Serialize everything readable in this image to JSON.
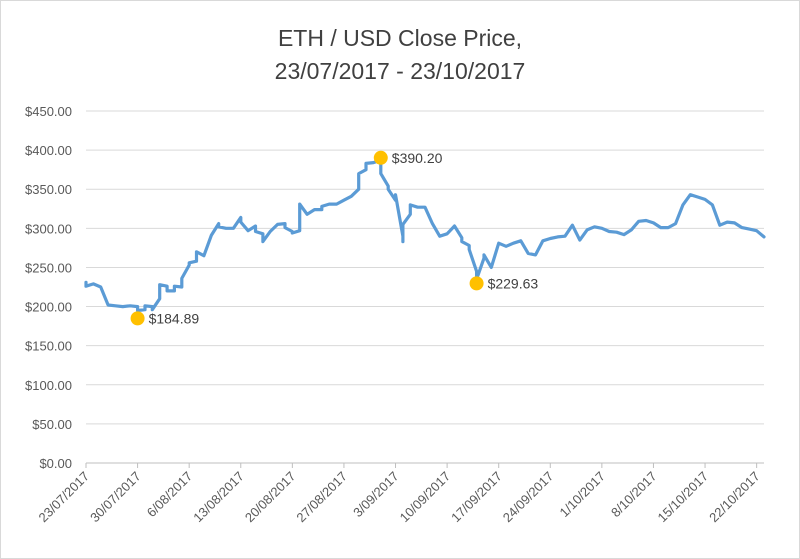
{
  "chart_data": {
    "type": "line",
    "title_lines": [
      "ETH / USD Close Price,",
      "23/07/2017 - 23/10/2017"
    ],
    "xlabel": "",
    "ylabel": "",
    "ylim": [
      0,
      450
    ],
    "y_ticks": [
      0,
      50,
      100,
      150,
      200,
      250,
      300,
      350,
      400,
      450
    ],
    "y_tick_labels": [
      "$0.00",
      "$50.00",
      "$100.00",
      "$150.00",
      "$200.00",
      "$250.00",
      "$300.00",
      "$350.00",
      "$400.00",
      "$450.00"
    ],
    "x_tick_labels": [
      "23/07/2017",
      "30/07/2017",
      "6/08/2017",
      "13/08/2017",
      "20/08/2017",
      "27/08/2017",
      "3/09/2017",
      "10/09/2017",
      "17/09/2017",
      "24/09/2017",
      "1/10/2017",
      "8/10/2017",
      "15/10/2017",
      "22/10/2017"
    ],
    "grid": "horizontal",
    "legend": "none",
    "series": [
      {
        "color": "#5b9bd5",
        "points": [
          [
            "23/07/2017",
            231
          ],
          [
            "23/07/2017",
            226
          ],
          [
            "24/07/2017",
            229
          ],
          [
            "25/07/2017",
            225
          ],
          [
            "26/07/2017",
            202
          ],
          [
            "27/07/2017",
            201
          ],
          [
            "28/07/2017",
            200
          ],
          [
            "29/07/2017",
            201
          ],
          [
            "30/07/2017",
            200
          ],
          [
            "30/07/2017",
            195
          ],
          [
            "31/07/2017",
            196
          ],
          [
            "31/07/2017",
            201
          ],
          [
            "1/08/2017",
            200
          ],
          [
            "1/08/2017",
            196
          ],
          [
            "2/08/2017",
            210
          ],
          [
            "2/08/2017",
            228
          ],
          [
            "3/08/2017",
            226
          ],
          [
            "3/08/2017",
            220
          ],
          [
            "4/08/2017",
            220
          ],
          [
            "4/08/2017",
            226
          ],
          [
            "5/08/2017",
            225
          ],
          [
            "5/08/2017",
            236
          ],
          [
            "6/08/2017",
            253
          ],
          [
            "6/08/2017",
            256
          ],
          [
            "7/08/2017",
            258
          ],
          [
            "7/08/2017",
            270
          ],
          [
            "8/08/2017",
            265
          ],
          [
            "9/08/2017",
            291
          ],
          [
            "10/08/2017",
            306
          ],
          [
            "10/08/2017",
            302
          ],
          [
            "11/08/2017",
            300
          ],
          [
            "12/08/2017",
            300
          ],
          [
            "13/08/2017",
            314
          ],
          [
            "13/08/2017",
            308
          ],
          [
            "14/08/2017",
            297
          ],
          [
            "15/08/2017",
            303
          ],
          [
            "15/08/2017",
            296
          ],
          [
            "16/08/2017",
            293
          ],
          [
            "16/08/2017",
            283
          ],
          [
            "17/08/2017",
            296
          ],
          [
            "18/08/2017",
            305
          ],
          [
            "19/08/2017",
            306
          ],
          [
            "19/08/2017",
            301
          ],
          [
            "20/08/2017",
            296
          ],
          [
            "20/08/2017",
            294
          ],
          [
            "21/08/2017",
            297
          ],
          [
            "21/08/2017",
            317
          ],
          [
            "21/08/2017",
            331
          ],
          [
            "22/08/2017",
            318
          ],
          [
            "23/08/2017",
            324
          ],
          [
            "24/08/2017",
            324
          ],
          [
            "24/08/2017",
            328
          ],
          [
            "25/08/2017",
            331
          ],
          [
            "26/08/2017",
            331
          ],
          [
            "27/08/2017",
            336
          ],
          [
            "28/08/2017",
            341
          ],
          [
            "29/08/2017",
            350
          ],
          [
            "29/08/2017",
            370
          ],
          [
            "30/08/2017",
            375
          ],
          [
            "30/08/2017",
            383
          ],
          [
            "31/08/2017",
            384
          ],
          [
            "1/09/2017",
            387
          ],
          [
            "1/09/2017",
            391
          ],
          [
            "1/09/2017",
            383
          ],
          [
            "1/09/2017",
            370
          ],
          [
            "2/09/2017",
            354
          ],
          [
            "2/09/2017",
            350
          ],
          [
            "3/09/2017",
            336
          ],
          [
            "3/09/2017",
            343
          ],
          [
            "4/09/2017",
            290
          ],
          [
            "4/09/2017",
            283
          ],
          [
            "4/09/2017",
            305
          ],
          [
            "5/09/2017",
            318
          ],
          [
            "5/09/2017",
            330
          ],
          [
            "6/09/2017",
            327
          ],
          [
            "7/09/2017",
            327
          ],
          [
            "8/09/2017",
            306
          ],
          [
            "9/09/2017",
            290
          ],
          [
            "10/09/2017",
            293
          ],
          [
            "11/09/2017",
            303
          ],
          [
            "12/09/2017",
            288
          ],
          [
            "12/09/2017",
            283
          ],
          [
            "13/09/2017",
            278
          ],
          [
            "13/09/2017",
            273
          ],
          [
            "14/09/2017",
            245
          ],
          [
            "14/09/2017",
            235
          ],
          [
            "15/09/2017",
            262
          ],
          [
            "15/09/2017",
            266
          ],
          [
            "16/09/2017",
            250
          ],
          [
            "17/09/2017",
            281
          ],
          [
            "18/09/2017",
            277
          ],
          [
            "19/09/2017",
            281
          ],
          [
            "20/09/2017",
            284
          ],
          [
            "21/09/2017",
            268
          ],
          [
            "22/09/2017",
            266
          ],
          [
            "23/09/2017",
            284
          ],
          [
            "24/09/2017",
            287
          ],
          [
            "25/09/2017",
            289
          ],
          [
            "26/09/2017",
            290
          ],
          [
            "27/09/2017",
            304
          ],
          [
            "28/09/2017",
            285
          ],
          [
            "29/09/2017",
            298
          ],
          [
            "30/09/2017",
            302
          ],
          [
            "1/10/2017",
            300
          ],
          [
            "2/10/2017",
            296
          ],
          [
            "3/10/2017",
            295
          ],
          [
            "4/10/2017",
            292
          ],
          [
            "5/10/2017",
            298
          ],
          [
            "6/10/2017",
            309
          ],
          [
            "7/10/2017",
            310
          ],
          [
            "8/10/2017",
            307
          ],
          [
            "9/10/2017",
            301
          ],
          [
            "10/10/2017",
            301
          ],
          [
            "11/10/2017",
            306
          ],
          [
            "12/10/2017",
            330
          ],
          [
            "13/10/2017",
            343
          ],
          [
            "14/10/2017",
            340
          ],
          [
            "15/10/2017",
            337
          ],
          [
            "16/10/2017",
            330
          ],
          [
            "17/10/2017",
            304
          ],
          [
            "18/10/2017",
            308
          ],
          [
            "19/10/2017",
            307
          ],
          [
            "20/10/2017",
            301
          ],
          [
            "21/10/2017",
            299
          ],
          [
            "22/10/2017",
            297
          ],
          [
            "23/10/2017",
            289
          ]
        ]
      }
    ],
    "annotations": [
      {
        "x": "30/07/2017",
        "y": 184.89,
        "label": "$184.89",
        "marker_color": "#ffc000",
        "label_side": "right"
      },
      {
        "x": "1/09/2017",
        "y": 390.2,
        "label": "$390.20",
        "marker_color": "#ffc000",
        "label_side": "right"
      },
      {
        "x": "14/09/2017",
        "y": 229.63,
        "label": "$229.63",
        "marker_color": "#ffc000",
        "label_side": "right"
      }
    ]
  }
}
